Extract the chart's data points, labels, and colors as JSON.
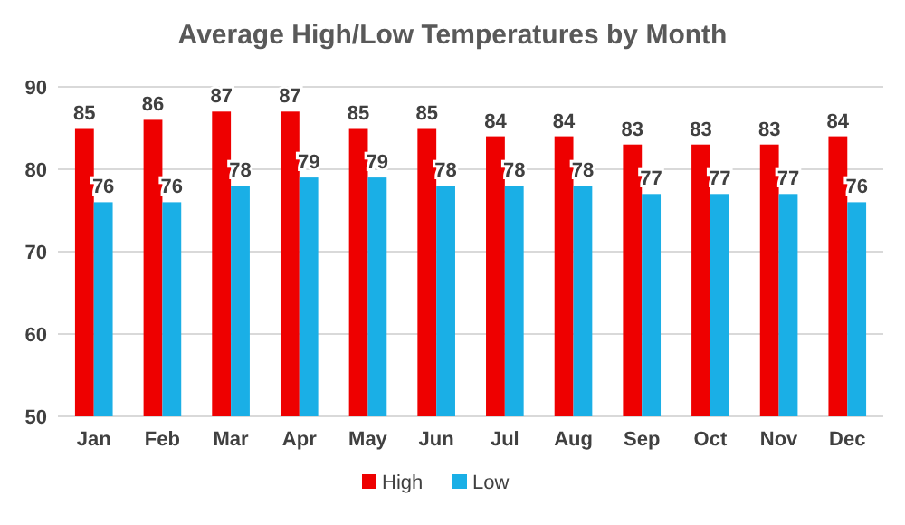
{
  "chart_data": {
    "type": "bar",
    "title": "Average High/Low Temperatures by Month",
    "categories": [
      "Jan",
      "Feb",
      "Mar",
      "Apr",
      "May",
      "Jun",
      "Jul",
      "Aug",
      "Sep",
      "Oct",
      "Nov",
      "Dec"
    ],
    "series": [
      {
        "name": "High",
        "color": "#ee0000",
        "values": [
          85,
          86,
          87,
          87,
          85,
          85,
          84,
          84,
          83,
          83,
          83,
          84
        ]
      },
      {
        "name": "Low",
        "color": "#1aafe6",
        "values": [
          76,
          76,
          78,
          79,
          79,
          78,
          78,
          78,
          77,
          77,
          77,
          76
        ]
      }
    ],
    "ylim": [
      50,
      90
    ],
    "yticks": [
      50,
      60,
      70,
      80,
      90
    ],
    "grid": "y",
    "legend": "bottom",
    "data_labels": true
  }
}
